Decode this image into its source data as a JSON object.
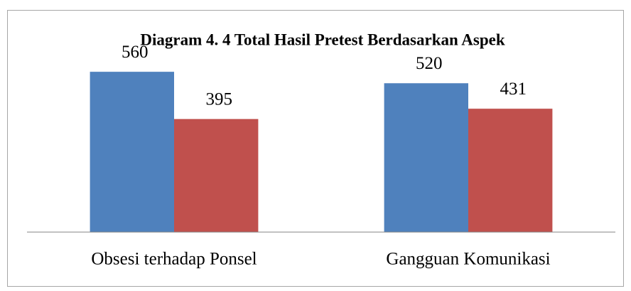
{
  "chart_data": {
    "type": "bar",
    "title": "Diagram  4. 4 Total Hasil Pretest Berdasarkan Aspek",
    "categories": [
      "Obsesi terhadap Ponsel",
      "Gangguan Komunikasi"
    ],
    "series": [
      {
        "color": "#4f81bd",
        "values": [
          560,
          520
        ]
      },
      {
        "color": "#c0504d",
        "values": [
          395,
          431
        ]
      }
    ],
    "ylim": [
      0,
      600
    ]
  }
}
